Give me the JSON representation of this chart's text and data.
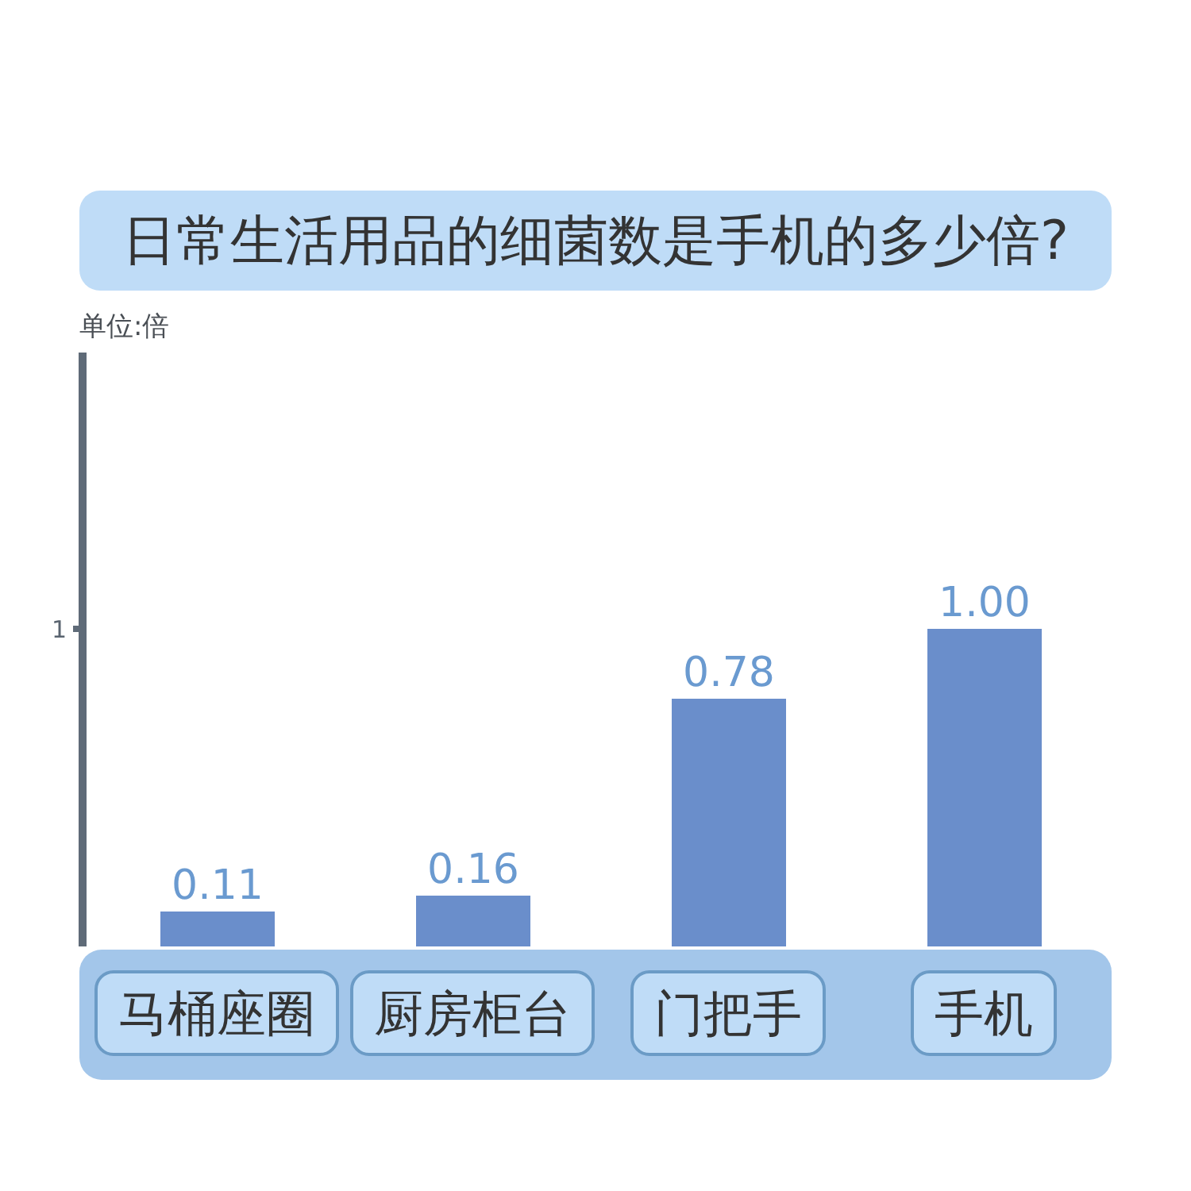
{
  "chart_data": {
    "type": "bar",
    "title": "日常生活用品的细菌数是手机的多少倍?",
    "ylabel": "单位:倍",
    "categories": [
      "马桶座圈",
      "厨房柜台",
      "门把手",
      "手机"
    ],
    "values": [
      0.11,
      0.16,
      0.78,
      1.0
    ],
    "value_labels": [
      "0.11",
      "0.16",
      "0.78",
      "1.00"
    ],
    "color": "#6a8ecb",
    "ylim": [
      0,
      1.87
    ],
    "yticks": [
      1
    ]
  }
}
